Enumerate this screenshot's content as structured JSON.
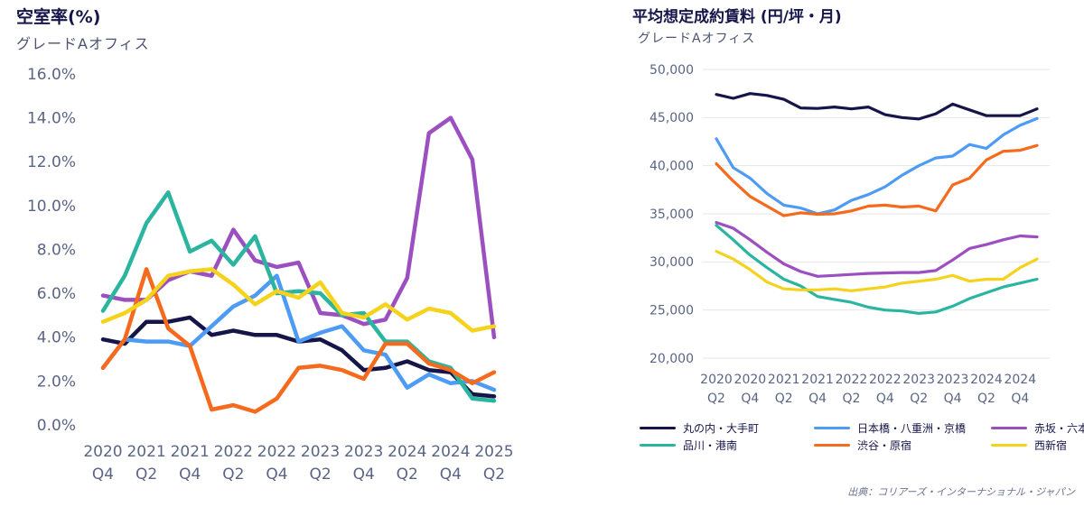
{
  "chart_data": [
    {
      "type": "line",
      "title": "空室率(%)",
      "subtitle": "グレードAオフィス",
      "ylim": [
        0,
        16
      ],
      "y_ticks": [
        "0.0%",
        "2.0%",
        "4.0%",
        "6.0%",
        "8.0%",
        "10.0%",
        "12.0%",
        "14.0%",
        "16.0%"
      ],
      "categories": [
        "2020 Q4",
        "2021 Q1",
        "2021 Q2",
        "2021 Q3",
        "2021 Q4",
        "2022 Q1",
        "2022 Q2",
        "2022 Q3",
        "2022 Q4",
        "2023 Q1",
        "2023 Q2",
        "2023 Q3",
        "2023 Q4",
        "2024 Q1",
        "2024 Q2",
        "2024 Q3",
        "2024 Q4",
        "2025 Q1",
        "2025 Q2"
      ],
      "x_labels": [
        {
          "index": 0,
          "year": "2020",
          "q": "Q4"
        },
        {
          "index": 2,
          "year": "2021",
          "q": "Q2"
        },
        {
          "index": 4,
          "year": "2021",
          "q": "Q4"
        },
        {
          "index": 6,
          "year": "2022",
          "q": "Q2"
        },
        {
          "index": 8,
          "year": "2022",
          "q": "Q4"
        },
        {
          "index": 10,
          "year": "2023",
          "q": "Q2"
        },
        {
          "index": 12,
          "year": "2023",
          "q": "Q4"
        },
        {
          "index": 14,
          "year": "2024",
          "q": "Q2"
        },
        {
          "index": 16,
          "year": "2024",
          "q": "Q4"
        },
        {
          "index": 18,
          "year": "2025",
          "q": "Q2"
        }
      ],
      "series": [
        {
          "name": "丸の内・大手町",
          "color": "#15154a",
          "values": [
            3.9,
            3.7,
            4.7,
            4.7,
            4.9,
            4.1,
            4.3,
            4.1,
            4.1,
            3.8,
            3.9,
            3.4,
            2.5,
            2.6,
            2.9,
            2.5,
            2.4,
            1.4,
            1.3
          ]
        },
        {
          "name": "日本橋・八重洲・京橋",
          "color": "#4d9bf5",
          "values": [
            2.6,
            3.9,
            3.8,
            3.8,
            3.6,
            4.5,
            5.4,
            5.9,
            6.8,
            3.8,
            4.2,
            4.5,
            3.4,
            3.2,
            1.7,
            2.3,
            1.9,
            2.0,
            1.6
          ]
        },
        {
          "name": "赤坂・六本木",
          "color": "#9b4fc0",
          "values": [
            5.9,
            5.7,
            5.7,
            6.6,
            7.0,
            6.8,
            8.9,
            7.5,
            7.2,
            7.4,
            5.1,
            5.0,
            4.6,
            4.8,
            6.7,
            13.3,
            14.0,
            12.1,
            4.0
          ]
        },
        {
          "name": "品川・港南",
          "color": "#2bb5a0",
          "values": [
            5.2,
            6.8,
            9.2,
            10.6,
            7.9,
            8.4,
            7.3,
            8.6,
            6.0,
            6.1,
            6.0,
            5.0,
            5.1,
            3.8,
            3.8,
            2.9,
            2.6,
            1.2,
            1.1
          ]
        },
        {
          "name": "渋谷・原宿",
          "color": "#f56a1c",
          "values": [
            2.6,
            3.9,
            7.1,
            4.4,
            3.6,
            0.7,
            0.9,
            0.6,
            1.2,
            2.6,
            2.7,
            2.5,
            2.1,
            3.7,
            3.7,
            2.8,
            2.5,
            1.9,
            2.4
          ]
        },
        {
          "name": "西新宿",
          "color": "#f5d21c",
          "values": [
            4.7,
            5.1,
            5.7,
            6.8,
            7.0,
            7.1,
            6.4,
            5.5,
            6.1,
            5.8,
            6.5,
            5.1,
            4.9,
            5.5,
            4.8,
            5.3,
            5.1,
            4.3,
            4.5
          ]
        }
      ]
    },
    {
      "type": "line",
      "title": "平均想定成約賃料 (円/坪・月)",
      "subtitle": "グレードAオフィス",
      "ylim": [
        20000,
        50000
      ],
      "y_ticks": [
        "20,000",
        "25,000",
        "30,000",
        "35,000",
        "40,000",
        "45,000",
        "50,000"
      ],
      "categories": [
        "2020 Q2",
        "2020 Q3",
        "2020 Q4",
        "2021 Q1",
        "2021 Q2",
        "2021 Q3",
        "2021 Q4",
        "2022 Q1",
        "2022 Q2",
        "2022 Q3",
        "2022 Q4",
        "2023 Q1",
        "2023 Q2",
        "2023 Q3",
        "2023 Q4",
        "2024 Q1",
        "2024 Q2",
        "2024 Q3",
        "2024 Q4",
        "2025 Q1"
      ],
      "x_labels": [
        {
          "index": 0,
          "year": "2020",
          "q": "Q2"
        },
        {
          "index": 2,
          "year": "2020",
          "q": "Q4"
        },
        {
          "index": 4,
          "year": "2021",
          "q": "Q2"
        },
        {
          "index": 6,
          "year": "2021",
          "q": "Q4"
        },
        {
          "index": 8,
          "year": "2022",
          "q": "Q2"
        },
        {
          "index": 10,
          "year": "2022",
          "q": "Q4"
        },
        {
          "index": 12,
          "year": "2023",
          "q": "Q2"
        },
        {
          "index": 14,
          "year": "2023",
          "q": "Q4"
        },
        {
          "index": 16,
          "year": "2024",
          "q": "Q2"
        },
        {
          "index": 18,
          "year": "2024",
          "q": "Q4"
        }
      ],
      "series": [
        {
          "name": "丸の内・大手町",
          "color": "#15154a",
          "values": [
            47400,
            47000,
            47500,
            47300,
            46900,
            46000,
            45950,
            46100,
            45900,
            46100,
            45300,
            45000,
            44850,
            45400,
            46400,
            45800,
            45200,
            45200,
            45200,
            45900
          ]
        },
        {
          "name": "日本橋・八重洲・京橋",
          "color": "#4d9bf5",
          "values": [
            42800,
            39800,
            38700,
            37100,
            35900,
            35600,
            35000,
            35400,
            36400,
            37000,
            37800,
            39000,
            40000,
            40800,
            41000,
            42200,
            41800,
            43200,
            44200,
            44900
          ]
        },
        {
          "name": "赤坂・六本木",
          "color": "#9b4fc0",
          "values": [
            34100,
            33500,
            32300,
            31000,
            29800,
            29000,
            28500,
            28600,
            28700,
            28800,
            28850,
            28900,
            28900,
            29100,
            30200,
            31400,
            31800,
            32300,
            32700,
            32600
          ]
        },
        {
          "name": "品川・港南",
          "color": "#2bb5a0",
          "values": [
            33800,
            32300,
            30700,
            29400,
            28200,
            27500,
            26400,
            26100,
            25800,
            25300,
            25000,
            24900,
            24650,
            24800,
            25400,
            26200,
            26800,
            27400,
            27800,
            28200
          ]
        },
        {
          "name": "渋谷・原宿",
          "color": "#f56a1c",
          "values": [
            40200,
            38400,
            36800,
            35800,
            34800,
            35100,
            34950,
            35000,
            35300,
            35800,
            35900,
            35700,
            35800,
            35300,
            38000,
            38700,
            40600,
            41500,
            41600,
            42100
          ]
        },
        {
          "name": "西新宿",
          "color": "#f5d21c",
          "values": [
            31100,
            30300,
            29200,
            27900,
            27200,
            27100,
            27100,
            27200,
            27000,
            27200,
            27400,
            27800,
            28000,
            28200,
            28600,
            28000,
            28200,
            28200,
            29400,
            30300
          ]
        }
      ],
      "legend_position": "bottom"
    }
  ],
  "source": "出典：コリアーズ・インターナショナル・ジャパン"
}
